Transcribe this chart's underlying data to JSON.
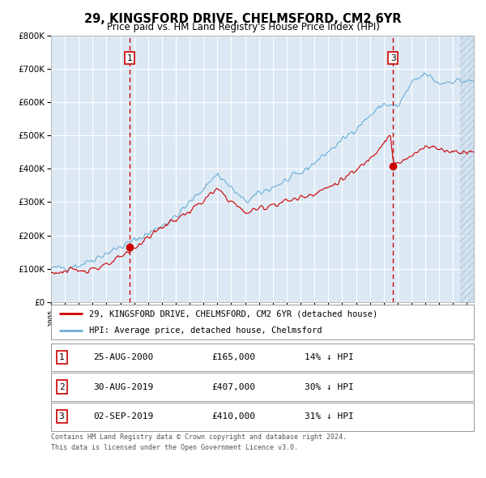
{
  "title": "29, KINGSFORD DRIVE, CHELMSFORD, CM2 6YR",
  "subtitle": "Price paid vs. HM Land Registry's House Price Index (HPI)",
  "legend_entry1": "29, KINGSFORD DRIVE, CHELMSFORD, CM2 6YR (detached house)",
  "legend_entry2": "HPI: Average price, detached house, Chelmsford",
  "footer1": "Contains HM Land Registry data © Crown copyright and database right 2024.",
  "footer2": "This data is licensed under the Open Government Licence v3.0.",
  "table_rows": [
    [
      "1",
      "25-AUG-2000",
      "£165,000",
      "14% ↓ HPI"
    ],
    [
      "2",
      "30-AUG-2019",
      "£407,000",
      "30% ↓ HPI"
    ],
    [
      "3",
      "02-SEP-2019",
      "£410,000",
      "31% ↓ HPI"
    ]
  ],
  "sale1_date_x": 2000.65,
  "sale1_price": 165000,
  "sale2_date_x": 2019.66,
  "sale2_price": 407000,
  "sale3_date_x": 2019.675,
  "sale3_price": 410000,
  "vline1_x": 2000.65,
  "vline3_x": 2019.675,
  "ylim": [
    0,
    800000
  ],
  "xlim_start": 1995.0,
  "xlim_end": 2025.5,
  "bg_color": "#dce9f5",
  "hpi_color": "#6baed6",
  "price_color": "#cc0000",
  "marker_color": "#cc0000",
  "vline_color": "#cc0000",
  "grid_color": "#ffffff",
  "hatch_start": 2024.5,
  "key_dates_hpi": [
    1995,
    1997,
    2000,
    2002,
    2004,
    2007,
    2009,
    2010,
    2013,
    2016,
    2019,
    2020,
    2021,
    2022,
    2023,
    2024,
    2025.5
  ],
  "key_vals_hpi": [
    100000,
    110000,
    165000,
    205000,
    255000,
    385000,
    300000,
    325000,
    385000,
    485000,
    595000,
    585000,
    655000,
    685000,
    655000,
    665000,
    660000
  ],
  "key_dates_price": [
    1995,
    1997,
    1999,
    2000,
    2001,
    2003,
    2005,
    2007,
    2009,
    2011,
    2013,
    2015,
    2017,
    2018,
    2019.5,
    2019.7,
    2020,
    2021,
    2022,
    2023,
    2024,
    2025.5
  ],
  "key_vals_price": [
    88000,
    95000,
    108000,
    133000,
    163000,
    225000,
    272000,
    338000,
    268000,
    293000,
    313000,
    343000,
    393000,
    433000,
    503000,
    410000,
    415000,
    435000,
    472000,
    458000,
    452000,
    452000
  ],
  "noise_scale_hpi": 8000,
  "noise_scale_price": 7000,
  "seed_hpi": 42,
  "seed_price": 123
}
